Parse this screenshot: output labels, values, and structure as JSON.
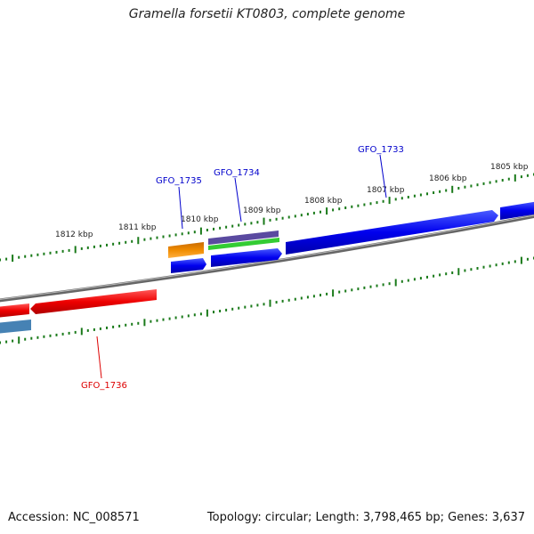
{
  "title": "Gramella forsetii KT0803, complete genome",
  "footer": {
    "accession": "Accession: NC_008571",
    "summary": "Topology: circular; Length: 3,798,465 bp; Genes: 3,637"
  },
  "scale_labels": [
    "1812 kbp",
    "1811 kbp",
    "1810 kbp",
    "1809 kbp",
    "1808 kbp",
    "1807 kbp",
    "1806 kbp",
    "1805 kbp"
  ],
  "gene_labels": [
    {
      "text": "GFO_1735",
      "color": "#0000cc"
    },
    {
      "text": "GFO_1734",
      "color": "#0000cc"
    },
    {
      "text": "GFO_1733",
      "color": "#0000cc"
    },
    {
      "text": "GFO_1736",
      "color": "#dd0000"
    }
  ],
  "colors": {
    "forward_cds": "#0000ee",
    "reverse_cds": "#ee0000",
    "orange_feature": "#f08c00",
    "purple_feature": "#5a4aa0",
    "green_feature": "#33cc33",
    "steelblue_feature": "#4682b4",
    "backbone": "#888888",
    "tick": "#1a7a1a"
  }
}
